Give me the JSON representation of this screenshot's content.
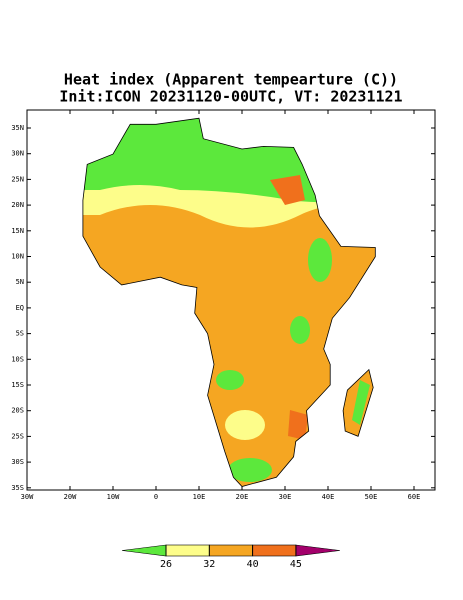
{
  "title": [
    "Heat index (Apparent tempearture (C))",
    "Init:ICON 20231120-00UTC, VT: 20231121"
  ],
  "map": {
    "lat_labels": [
      "35N",
      "30N",
      "25N",
      "20N",
      "15N",
      "10N",
      "5N",
      "EQ",
      "5S",
      "10S",
      "15S",
      "20S",
      "25S",
      "30S",
      "35S"
    ],
    "lon_labels": [
      "30W",
      "20W",
      "10W",
      "0",
      "10E",
      "20E",
      "30E",
      "40E",
      "50E",
      "60E"
    ]
  },
  "colorbar": {
    "levels": [
      26,
      32,
      40,
      45
    ],
    "colors": [
      "#5ce83c",
      "#fdfd8a",
      "#f5a622",
      "#f0701c",
      "#a3006b"
    ]
  }
}
